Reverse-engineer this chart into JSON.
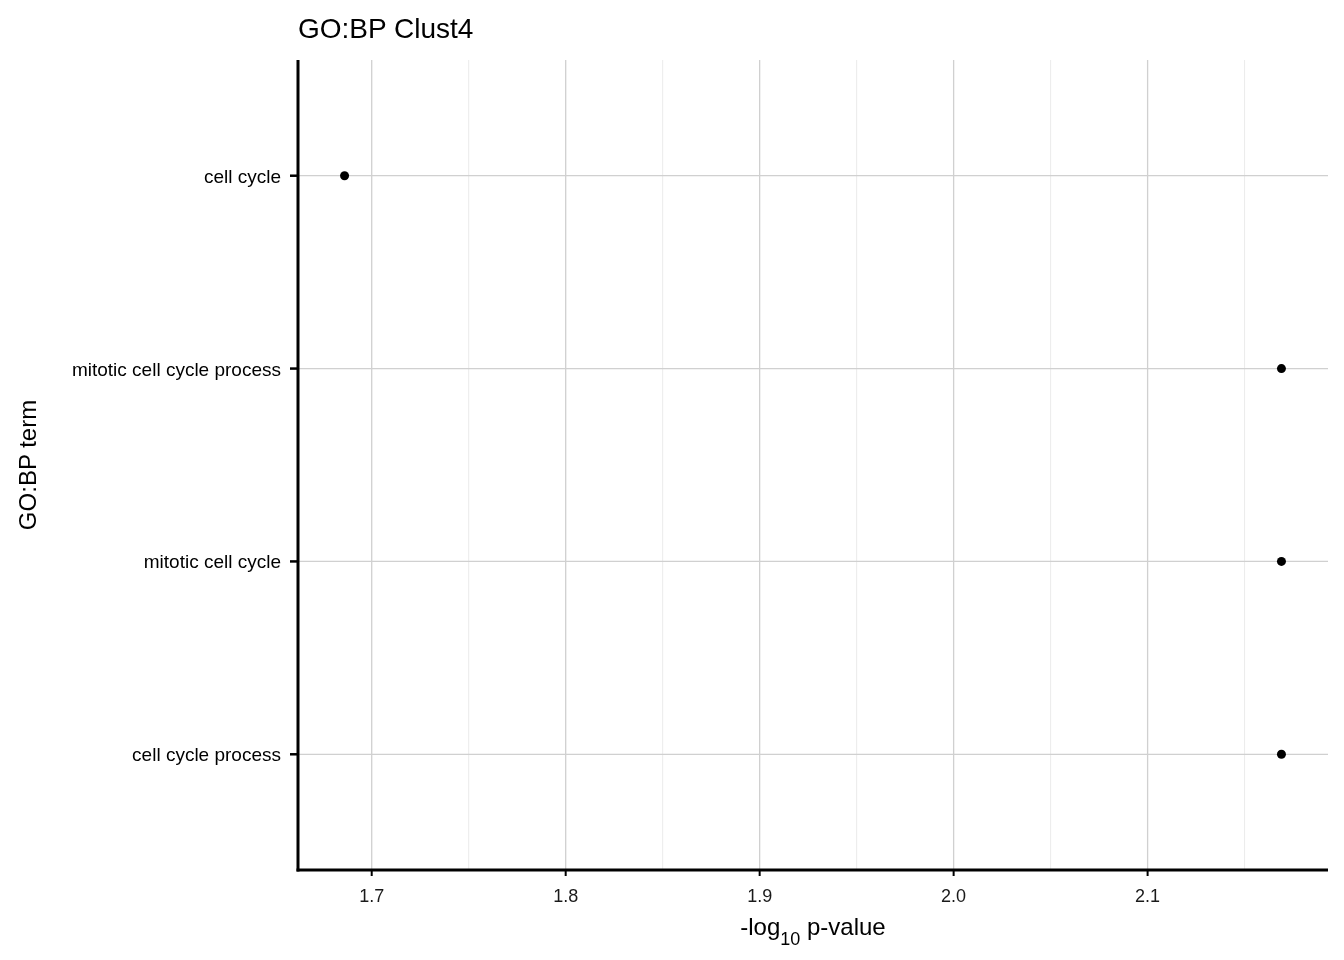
{
  "chart_data": {
    "type": "scatter",
    "orientation": "horizontal",
    "title": "GO:BP Clust4",
    "xlabel": "-log$_{10}$ p-value",
    "ylabel": "GO:BP term",
    "categories": [
      "cell cycle",
      "mitotic cell cycle process",
      "mitotic cell cycle",
      "cell cycle process"
    ],
    "values": [
      1.686,
      2.169,
      2.169,
      2.169
    ],
    "color": "#000000",
    "marker": "circle",
    "xlim": [
      1.662,
      2.193
    ],
    "xticks": [
      1.7,
      {
        "value": 1.75,
        "label": null
      },
      1.8,
      {
        "value": 1.85,
        "label": null
      },
      1.9,
      {
        "value": 1.95,
        "label": null
      },
      {
        "value": 2.0,
        "label": "2.0"
      },
      {
        "value": 2.05,
        "label": null
      },
      2.1,
      {
        "value": 2.15,
        "label": null
      }
    ],
    "grid": true
  }
}
